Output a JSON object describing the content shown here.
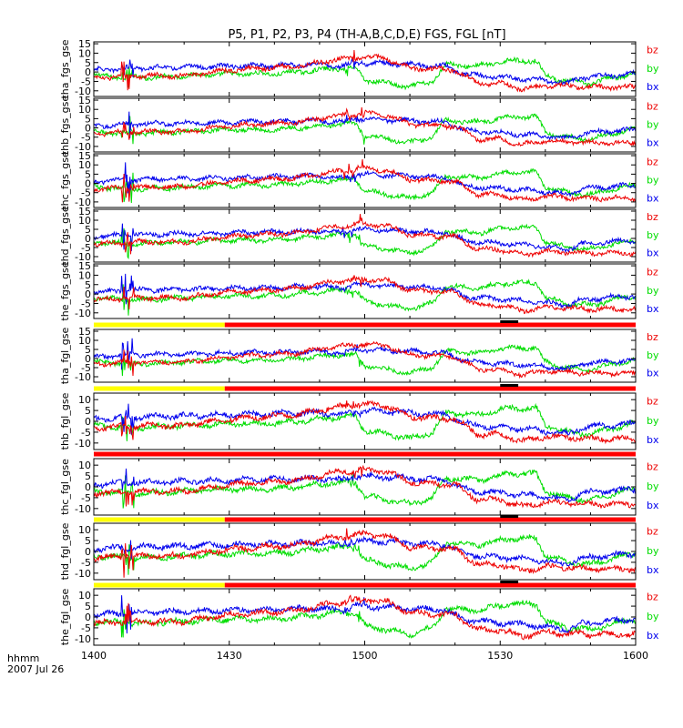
{
  "chart_data": {
    "type": "line",
    "title": "P5, P1, P2, P3, P4 (TH-A,B,C,D,E) FGS, FGL [nT]",
    "x_axis": {
      "ticks": [
        "1400",
        "1430",
        "1500",
        "1530",
        "1600"
      ],
      "label_line1": "hhmm",
      "label_line2": "2007 Jul 26",
      "range_minutes": [
        0,
        120
      ]
    },
    "colors": {
      "bx": "#0000ee",
      "by": "#00dd00",
      "bz": "#ee0000",
      "yellow": "#ffff00",
      "red": "#ff0000",
      "black": "#000000"
    },
    "panels": [
      {
        "ylabel": "tha_fgs_gse",
        "yticks": [
          "15",
          "10",
          "5",
          "0",
          "-5",
          "-10"
        ],
        "tick_values": [
          15,
          10,
          5,
          0,
          -5,
          -10
        ],
        "ylim": [
          -13,
          16
        ],
        "legend": [
          "bz",
          "by",
          "bx"
        ],
        "variant": 0
      },
      {
        "ylabel": "thb_fgs_gse",
        "yticks": [
          "15",
          "10",
          "5",
          "0",
          "-5",
          "-10"
        ],
        "tick_values": [
          15,
          10,
          5,
          0,
          -5,
          -10
        ],
        "ylim": [
          -13,
          16
        ],
        "legend": [
          "bz",
          "by",
          "bx"
        ],
        "variant": 1
      },
      {
        "ylabel": "thc_fgs_gse",
        "yticks": [
          "15",
          "10",
          "5",
          "0",
          "-5",
          "-10"
        ],
        "tick_values": [
          15,
          10,
          5,
          0,
          -5,
          -10
        ],
        "ylim": [
          -13,
          16
        ],
        "legend": [
          "bz",
          "by",
          "bx"
        ],
        "variant": 2
      },
      {
        "ylabel": "thd_fgs_gse",
        "yticks": [
          "15",
          "10",
          "5",
          "0",
          "-5",
          "-10"
        ],
        "tick_values": [
          15,
          10,
          5,
          0,
          -5,
          -10
        ],
        "ylim": [
          -13,
          16
        ],
        "legend": [
          "bz",
          "by",
          "bx"
        ],
        "variant": 3
      },
      {
        "ylabel": "the_fgs_gse",
        "yticks": [
          "15",
          "10",
          "5",
          "0",
          "-5",
          "-10"
        ],
        "tick_values": [
          15,
          10,
          5,
          0,
          -5,
          -10
        ],
        "ylim": [
          -13,
          16
        ],
        "legend": [
          "bz",
          "by",
          "bx"
        ],
        "variant": 4
      },
      {
        "ylabel": "tha_fgl_gse",
        "yticks": [
          "15",
          "10",
          "5",
          "0",
          "-5",
          "-10"
        ],
        "tick_values": [
          15,
          10,
          5,
          0,
          -5,
          -10
        ],
        "ylim": [
          -13,
          16
        ],
        "legend": [
          "bz",
          "by",
          "bx"
        ],
        "variant": 0
      },
      {
        "ylabel": "thb_fgl_gse",
        "yticks": [
          "10",
          "5",
          "0",
          "-5",
          "-10"
        ],
        "tick_values": [
          10,
          5,
          0,
          -5,
          -10
        ],
        "ylim": [
          -13,
          13
        ],
        "legend": [
          "bz",
          "by",
          "bx"
        ],
        "variant": 1
      },
      {
        "ylabel": "thc_fgl_gse",
        "yticks": [
          "10",
          "5",
          "0",
          "-5",
          "-10"
        ],
        "tick_values": [
          10,
          5,
          0,
          -5,
          -10
        ],
        "ylim": [
          -13,
          13
        ],
        "legend": [
          "bz",
          "by",
          "bx"
        ],
        "variant": 2
      },
      {
        "ylabel": "thd_fgl_gse",
        "yticks": [
          "10",
          "5",
          "0",
          "-5",
          "-10"
        ],
        "tick_values": [
          10,
          5,
          0,
          -5,
          -10
        ],
        "ylim": [
          -13,
          13
        ],
        "legend": [
          "bz",
          "by",
          "bx"
        ],
        "variant": 3
      },
      {
        "ylabel": "the_fgl_gse",
        "yticks": [
          "10",
          "5",
          "0",
          "-5",
          "-10"
        ],
        "tick_values": [
          10,
          5,
          0,
          -5,
          -10
        ],
        "ylim": [
          -13,
          13
        ],
        "legend": [
          "bz",
          "by",
          "bx"
        ],
        "variant": 4
      }
    ],
    "series_profiles": {
      "bx": {
        "minutes": [
          0,
          8,
          30,
          50,
          55,
          58,
          70,
          78,
          82,
          85,
          98,
          105,
          108,
          113,
          120
        ],
        "values": [
          1,
          2,
          3,
          4,
          3,
          5,
          4,
          3,
          -1,
          -2,
          -4,
          -6,
          -3,
          -2,
          -1
        ]
      },
      "by": {
        "minutes": [
          0,
          10,
          30,
          40,
          50,
          54,
          58,
          60,
          70,
          75,
          78,
          85,
          92,
          98,
          100,
          105,
          110,
          115,
          120
        ],
        "values": [
          -2,
          -3,
          -1,
          -1,
          1,
          2,
          2,
          -4,
          -8,
          -5,
          4,
          3,
          6,
          6,
          -2,
          -5,
          -6,
          -3,
          -1
        ]
      },
      "bz": {
        "minutes": [
          0,
          10,
          20,
          30,
          45,
          52,
          60,
          65,
          70,
          80,
          85,
          90,
          95,
          100,
          110,
          120
        ],
        "values": [
          -3,
          -2,
          -2,
          1,
          3,
          6,
          8,
          7,
          2,
          1,
          -6,
          -6,
          -9,
          -7,
          -8,
          -8
        ]
      }
    },
    "state_bars": [
      {
        "after_panel": 4,
        "segments": [
          {
            "from_minute": 0,
            "to_minute": 29,
            "color": "yellow"
          },
          {
            "from_minute": 29,
            "to_minute": 120,
            "color": "red"
          }
        ],
        "marker": {
          "from_minute": 90,
          "to_minute": 94
        }
      },
      {
        "after_panel": 5,
        "segments": [
          {
            "from_minute": 0,
            "to_minute": 29,
            "color": "yellow"
          },
          {
            "from_minute": 29,
            "to_minute": 120,
            "color": "red"
          }
        ],
        "marker": {
          "from_minute": 90,
          "to_minute": 94
        }
      },
      {
        "after_panel": 6,
        "segments": [
          {
            "from_minute": 0,
            "to_minute": 120,
            "color": "red"
          }
        ],
        "marker": null
      },
      {
        "after_panel": 7,
        "segments": [
          {
            "from_minute": 0,
            "to_minute": 29,
            "color": "yellow"
          },
          {
            "from_minute": 29,
            "to_minute": 120,
            "color": "red"
          }
        ],
        "marker": {
          "from_minute": 90,
          "to_minute": 94
        }
      },
      {
        "after_panel": 8,
        "segments": [
          {
            "from_minute": 0,
            "to_minute": 29,
            "color": "yellow"
          },
          {
            "from_minute": 29,
            "to_minute": 120,
            "color": "red"
          }
        ],
        "marker": {
          "from_minute": 90,
          "to_minute": 94
        }
      }
    ]
  }
}
